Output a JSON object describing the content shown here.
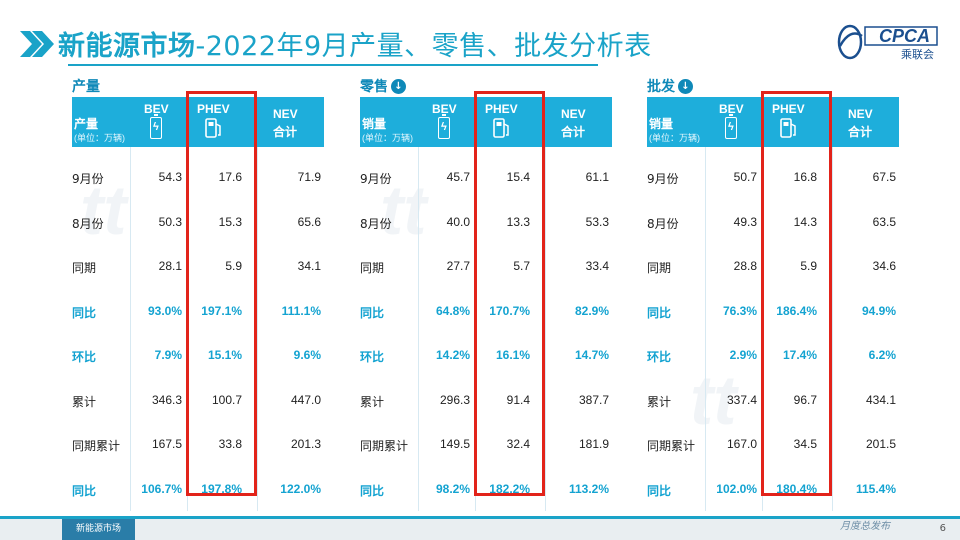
{
  "title_bold": "新能源市场",
  "title_rest": "-2022年9月产量、零售、批发分析表",
  "logo": {
    "name": "CPCA",
    "sub": "乘联会"
  },
  "tables": [
    {
      "section": "产量",
      "has_icon": false,
      "first_col": {
        "label": "产量",
        "unit": "(单位：万辆)"
      },
      "rows": [
        {
          "label": "9月份",
          "bev": "54.3",
          "phev": "17.6",
          "nev": "71.9",
          "pct": false
        },
        {
          "label": "8月份",
          "bev": "50.3",
          "phev": "15.3",
          "nev": "65.6",
          "pct": false
        },
        {
          "label": "同期",
          "bev": "28.1",
          "phev": "5.9",
          "nev": "34.1",
          "pct": false
        },
        {
          "label": "同比",
          "bev": "93.0%",
          "phev": "197.1%",
          "nev": "111.1%",
          "pct": true
        },
        {
          "label": "环比",
          "bev": "7.9%",
          "phev": "15.1%",
          "nev": "9.6%",
          "pct": true
        },
        {
          "label": "累计",
          "bev": "346.3",
          "phev": "100.7",
          "nev": "447.0",
          "pct": false
        },
        {
          "label": "同期累计",
          "bev": "167.5",
          "phev": "33.8",
          "nev": "201.3",
          "pct": false
        },
        {
          "label": "同比",
          "bev": "106.7%",
          "phev": "197.8%",
          "nev": "122.0%",
          "pct": true
        }
      ]
    },
    {
      "section": "零售",
      "has_icon": true,
      "first_col": {
        "label": "销量",
        "unit": "(单位：万辆)"
      },
      "rows": [
        {
          "label": "9月份",
          "bev": "45.7",
          "phev": "15.4",
          "nev": "61.1",
          "pct": false
        },
        {
          "label": "8月份",
          "bev": "40.0",
          "phev": "13.3",
          "nev": "53.3",
          "pct": false
        },
        {
          "label": "同期",
          "bev": "27.7",
          "phev": "5.7",
          "nev": "33.4",
          "pct": false
        },
        {
          "label": "同比",
          "bev": "64.8%",
          "phev": "170.7%",
          "nev": "82.9%",
          "pct": true
        },
        {
          "label": "环比",
          "bev": "14.2%",
          "phev": "16.1%",
          "nev": "14.7%",
          "pct": true
        },
        {
          "label": "累计",
          "bev": "296.3",
          "phev": "91.4",
          "nev": "387.7",
          "pct": false
        },
        {
          "label": "同期累计",
          "bev": "149.5",
          "phev": "32.4",
          "nev": "181.9",
          "pct": false
        },
        {
          "label": "同比",
          "bev": "98.2%",
          "phev": "182.2%",
          "nev": "113.2%",
          "pct": true
        }
      ]
    },
    {
      "section": "批发",
      "has_icon": true,
      "first_col": {
        "label": "销量",
        "unit": "(单位：万辆)"
      },
      "rows": [
        {
          "label": "9月份",
          "bev": "50.7",
          "phev": "16.8",
          "nev": "67.5",
          "pct": false
        },
        {
          "label": "8月份",
          "bev": "49.3",
          "phev": "14.3",
          "nev": "63.5",
          "pct": false
        },
        {
          "label": "同期",
          "bev": "28.8",
          "phev": "5.9",
          "nev": "34.6",
          "pct": false
        },
        {
          "label": "同比",
          "bev": "76.3%",
          "phev": "186.4%",
          "nev": "94.9%",
          "pct": true
        },
        {
          "label": "环比",
          "bev": "2.9%",
          "phev": "17.4%",
          "nev": "6.2%",
          "pct": true
        },
        {
          "label": "累计",
          "bev": "337.4",
          "phev": "96.7",
          "nev": "434.1",
          "pct": false
        },
        {
          "label": "同期累计",
          "bev": "167.0",
          "phev": "34.5",
          "nev": "201.5",
          "pct": false
        },
        {
          "label": "同比",
          "bev": "102.0%",
          "phev": "180.4%",
          "nev": "115.4%",
          "pct": true
        }
      ]
    }
  ],
  "headers": {
    "bev": "BEV",
    "phev": "PHEV",
    "nev": "NEV",
    "nev_sub": "合计"
  },
  "footer": {
    "active_tab": "新能源市场",
    "page": "6",
    "watermark": "月度总发布"
  },
  "colors": {
    "accent": "#1aa3c8",
    "header": "#1eaedb",
    "highlight": "#e2231a",
    "pct": "#14a3d1"
  }
}
